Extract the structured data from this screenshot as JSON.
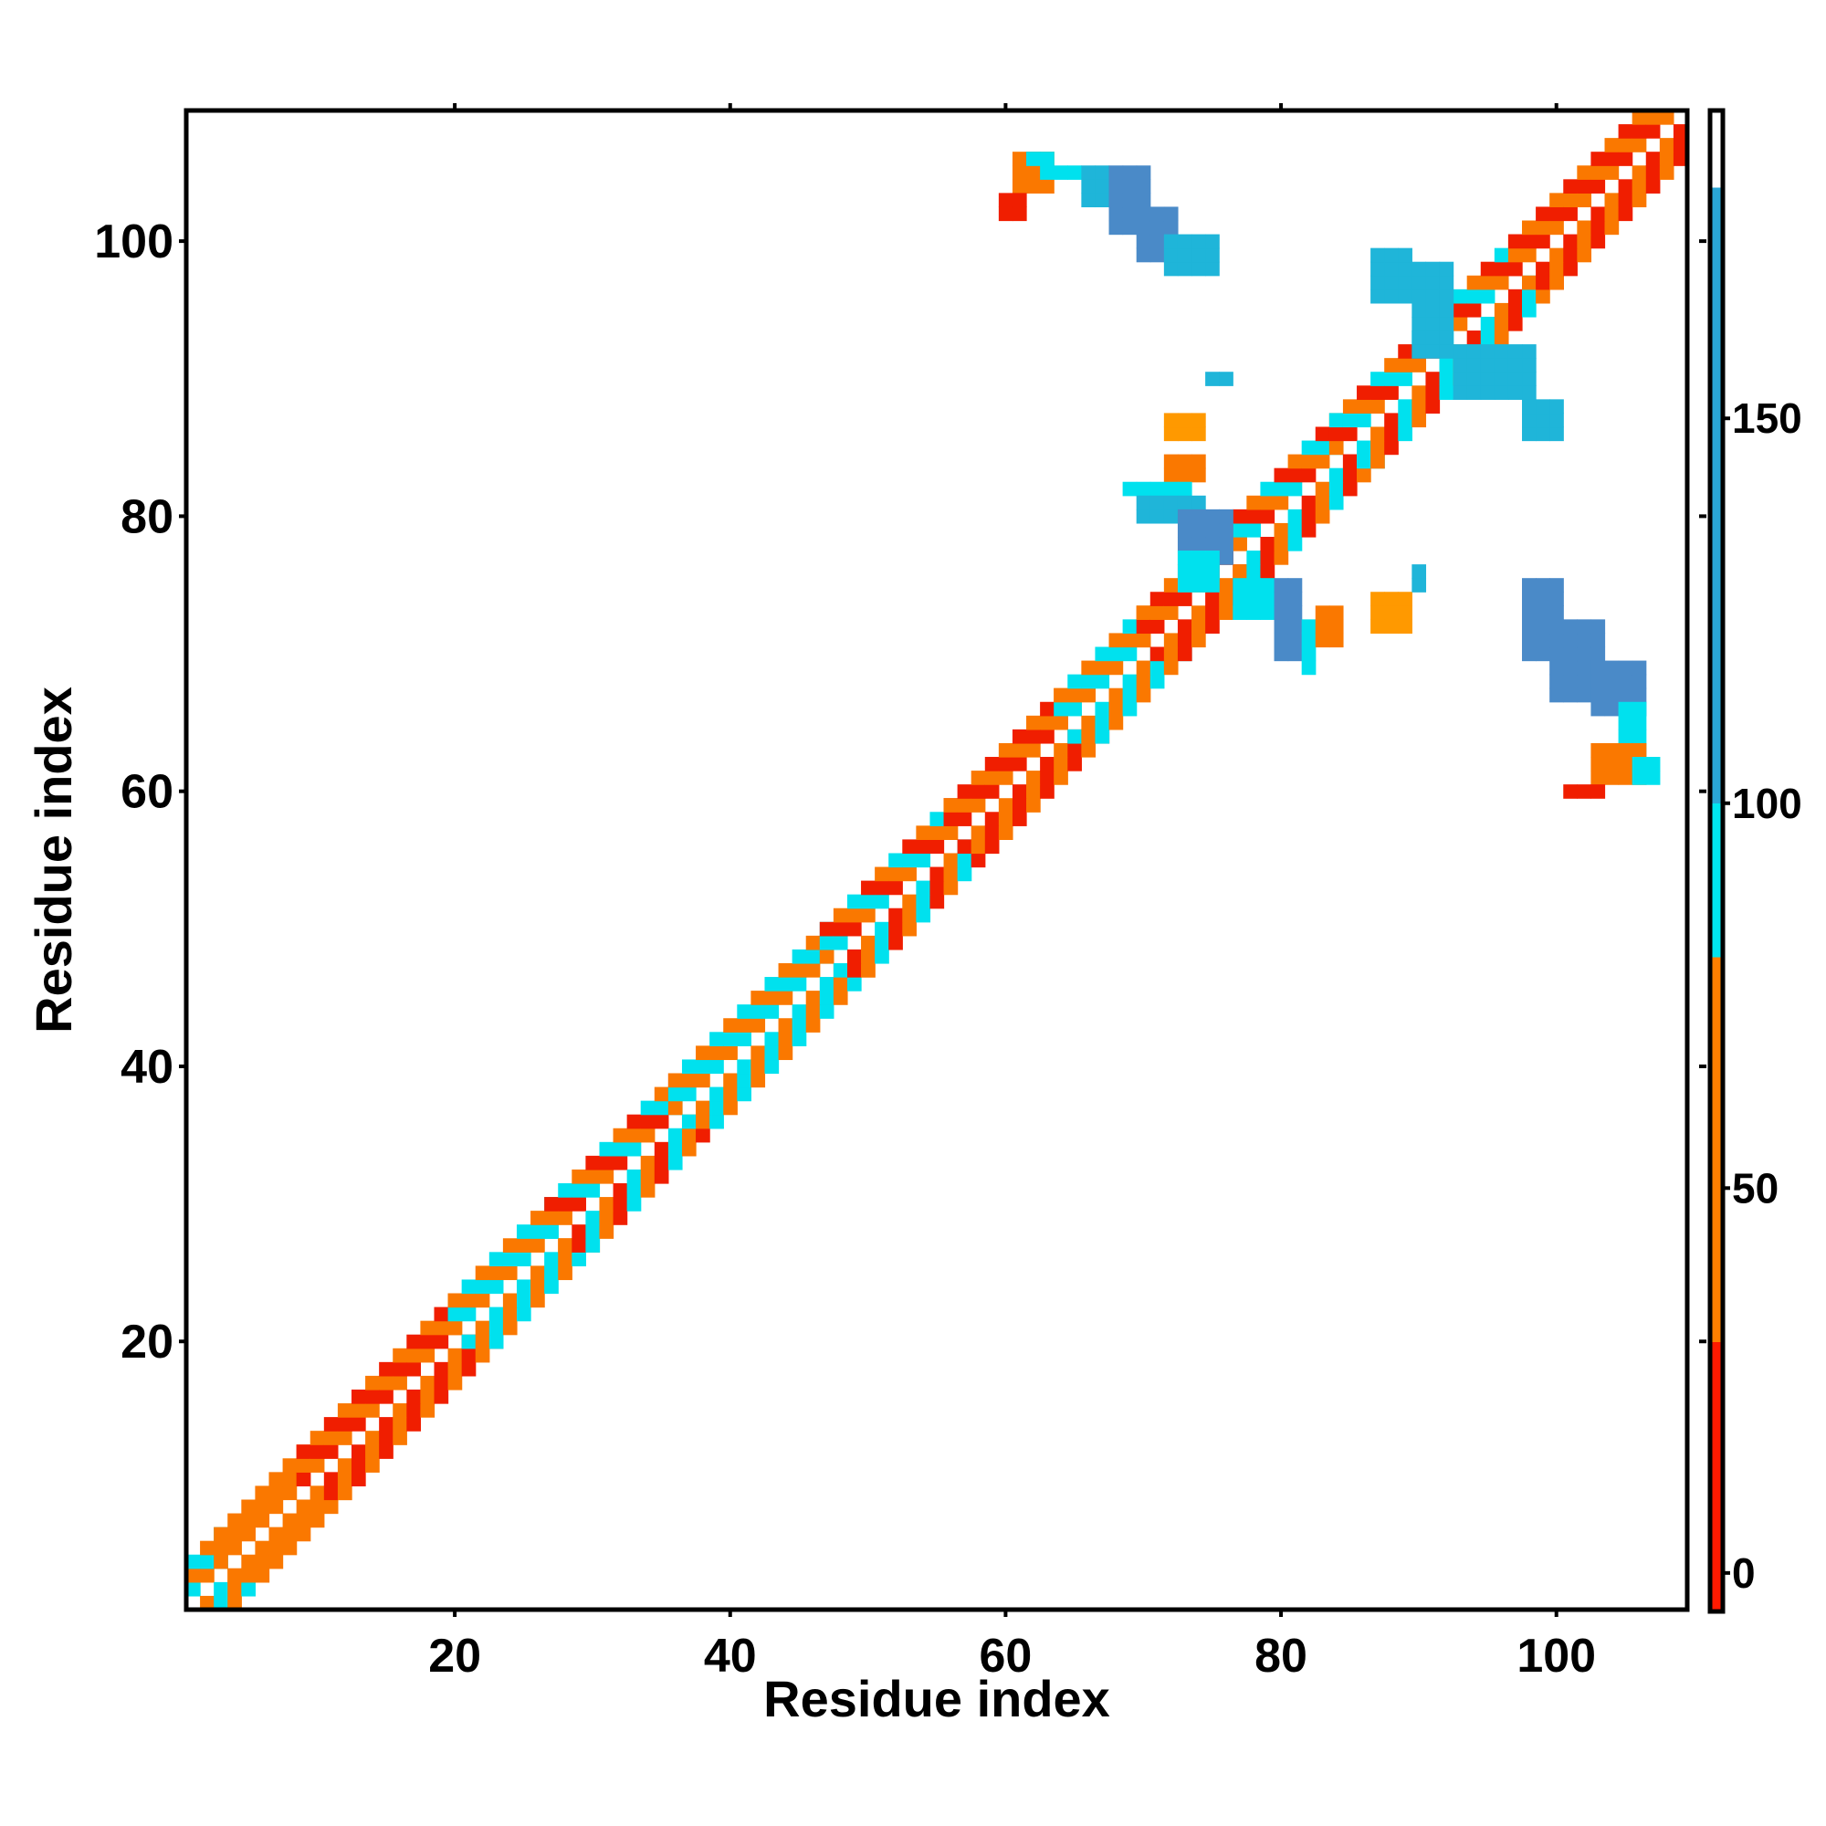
{
  "chart_data": {
    "type": "heatmap",
    "title": "",
    "xlabel": "Residue index",
    "ylabel": "Residue index",
    "xlim": [
      1,
      109
    ],
    "ylim": [
      1,
      109
    ],
    "xticks": [
      20,
      40,
      60,
      80,
      100
    ],
    "yticks": [
      20,
      40,
      60,
      80,
      100
    ],
    "colorbar": {
      "ticks": [
        0,
        50,
        100,
        150
      ],
      "range": [
        -5,
        190
      ],
      "segments": [
        {
          "from": -5,
          "to": 30,
          "color": "#ff1a00"
        },
        {
          "from": 30,
          "to": 80,
          "color": "#ff7f00"
        },
        {
          "from": 80,
          "to": 100,
          "color": "#00e6f0"
        },
        {
          "from": 100,
          "to": 180,
          "color": "#2aa6d6"
        },
        {
          "from": 180,
          "to": 190,
          "color": "#ffffff"
        }
      ]
    },
    "color_legend": {
      "red": "#f01e00",
      "orange": "#fa7800",
      "amber": "#ff9900",
      "cyan": "#00e1ee",
      "skyblue": "#1fb5d9",
      "steelblue": "#4a8ac8"
    },
    "diagonal_band": {
      "comment": "checkerboard band along the diagonal; per-segment color classes",
      "segments": [
        {
          "from": 1,
          "to": 3,
          "colors": [
            "cyan",
            "orange"
          ]
        },
        {
          "from": 3,
          "to": 9,
          "colors": [
            "orange",
            "orange"
          ]
        },
        {
          "from": 9,
          "to": 20,
          "colors": [
            "red",
            "orange"
          ]
        },
        {
          "from": 20,
          "to": 27,
          "colors": [
            "cyan",
            "orange"
          ]
        },
        {
          "from": 27,
          "to": 36,
          "colors": [
            "red",
            "cyan",
            "orange"
          ]
        },
        {
          "from": 36,
          "to": 47,
          "colors": [
            "cyan",
            "orange"
          ]
        },
        {
          "from": 47,
          "to": 56,
          "colors": [
            "orange",
            "cyan",
            "red"
          ]
        },
        {
          "from": 56,
          "to": 64,
          "colors": [
            "red",
            "orange"
          ]
        },
        {
          "from": 64,
          "to": 70,
          "colors": [
            "cyan",
            "orange"
          ]
        },
        {
          "from": 70,
          "to": 76,
          "colors": [
            "red",
            "orange"
          ]
        },
        {
          "from": 76,
          "to": 84,
          "colors": [
            "orange",
            "cyan",
            "red"
          ]
        },
        {
          "from": 84,
          "to": 97,
          "colors": [
            "cyan",
            "orange",
            "red"
          ]
        },
        {
          "from": 97,
          "to": 109,
          "colors": [
            "red",
            "orange"
          ]
        }
      ]
    },
    "off_diagonal_blocks": [
      {
        "x": [
          61,
          63
        ],
        "y": [
          104,
          106
        ],
        "color": "orange"
      },
      {
        "x": [
          60,
          61
        ],
        "y": [
          102,
          103
        ],
        "color": "red"
      },
      {
        "x": [
          62,
          63
        ],
        "y": [
          106,
          106
        ],
        "color": "cyan"
      },
      {
        "x": [
          63,
          65
        ],
        "y": [
          105,
          105
        ],
        "color": "cyan"
      },
      {
        "x": [
          66,
          67
        ],
        "y": [
          103,
          105
        ],
        "color": "skyblue"
      },
      {
        "x": [
          68,
          70
        ],
        "y": [
          101,
          105
        ],
        "color": "steelblue"
      },
      {
        "x": [
          70,
          72
        ],
        "y": [
          99,
          102
        ],
        "color": "steelblue"
      },
      {
        "x": [
          72,
          75
        ],
        "y": [
          98,
          100
        ],
        "color": "skyblue"
      },
      {
        "x": [
          75,
          76
        ],
        "y": [
          90,
          90
        ],
        "color": "skyblue"
      },
      {
        "x": [
          72,
          74
        ],
        "y": [
          86,
          87
        ],
        "color": "amber"
      },
      {
        "x": [
          72,
          74
        ],
        "y": [
          83,
          84
        ],
        "color": "orange"
      },
      {
        "x": [
          69,
          73
        ],
        "y": [
          82,
          82
        ],
        "color": "cyan"
      },
      {
        "x": [
          70,
          74
        ],
        "y": [
          80,
          81
        ],
        "color": "skyblue"
      },
      {
        "x": [
          73,
          76
        ],
        "y": [
          77,
          80
        ],
        "color": "steelblue"
      },
      {
        "x": [
          73,
          75
        ],
        "y": [
          75,
          77
        ],
        "color": "cyan"
      },
      {
        "x": [
          77,
          79
        ],
        "y": [
          73,
          75
        ],
        "color": "cyan"
      },
      {
        "x": [
          80,
          81
        ],
        "y": [
          70,
          75
        ],
        "color": "steelblue"
      },
      {
        "x": [
          82,
          82
        ],
        "y": [
          69,
          72
        ],
        "color": "cyan"
      },
      {
        "x": [
          83,
          84
        ],
        "y": [
          71,
          73
        ],
        "color": "orange"
      },
      {
        "x": [
          87,
          89
        ],
        "y": [
          72,
          74
        ],
        "color": "amber"
      },
      {
        "x": [
          90,
          90
        ],
        "y": [
          75,
          76
        ],
        "color": "skyblue"
      },
      {
        "x": [
          87,
          89
        ],
        "y": [
          96,
          99
        ],
        "color": "skyblue"
      },
      {
        "x": [
          90,
          92
        ],
        "y": [
          92,
          98
        ],
        "color": "skyblue"
      },
      {
        "x": [
          93,
          98
        ],
        "y": [
          89,
          92
        ],
        "color": "skyblue"
      },
      {
        "x": [
          98,
          100
        ],
        "y": [
          86,
          88
        ],
        "color": "skyblue"
      },
      {
        "x": [
          98,
          100
        ],
        "y": [
          70,
          75
        ],
        "color": "steelblue"
      },
      {
        "x": [
          100,
          103
        ],
        "y": [
          67,
          72
        ],
        "color": "steelblue"
      },
      {
        "x": [
          103,
          106
        ],
        "y": [
          66,
          69
        ],
        "color": "steelblue"
      },
      {
        "x": [
          105,
          106
        ],
        "y": [
          63,
          66
        ],
        "color": "cyan"
      },
      {
        "x": [
          103,
          106
        ],
        "y": [
          61,
          63
        ],
        "color": "orange"
      },
      {
        "x": [
          101,
          103
        ],
        "y": [
          60,
          60
        ],
        "color": "red"
      },
      {
        "x": [
          106,
          107
        ],
        "y": [
          61,
          62
        ],
        "color": "cyan"
      }
    ]
  }
}
